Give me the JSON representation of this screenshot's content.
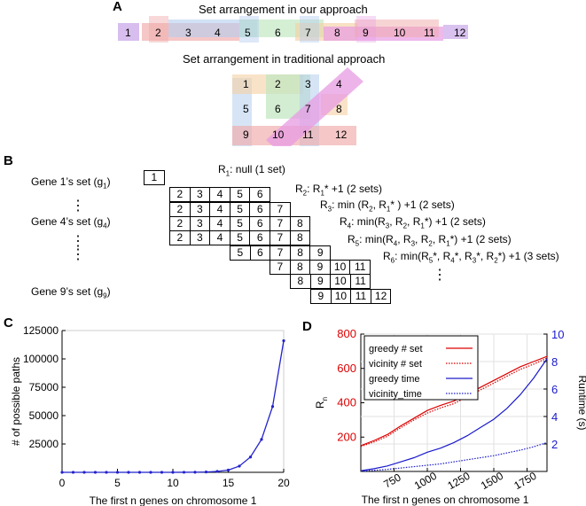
{
  "panel_a": {
    "label": "A",
    "title_ours": "Set arrangement in our approach",
    "title_traditional": "Set arrangement in traditional approach",
    "numbers": [
      "1",
      "2",
      "3",
      "4",
      "5",
      "6",
      "7",
      "8",
      "9",
      "10",
      "11",
      "12"
    ],
    "colors": {
      "purple": "#c9a8e8",
      "red": "#f0a9a9",
      "blue": "#b4cdef",
      "green": "#bfe6bf",
      "orange": "#f5d1a4",
      "magenta": "#e79be3"
    }
  },
  "panel_b": {
    "label": "B",
    "gene_labels": [
      {
        "text": "Gene 1’s set (g",
        "sub": "1",
        "tail": ")"
      },
      {
        "text": "Gene 4’s set (g",
        "sub": "4",
        "tail": ")"
      },
      {
        "text": "Gene 9’s set (g",
        "sub": "9",
        "tail": ")"
      }
    ],
    "vdots": [
      "⋮",
      "⋮"
    ],
    "rows": [
      [
        "1"
      ],
      [
        "2",
        "3",
        "4",
        "5",
        "6"
      ],
      [
        "2",
        "3",
        "4",
        "5",
        "6",
        "7"
      ],
      [
        "2",
        "3",
        "4",
        "5",
        "6",
        "7",
        "8"
      ],
      [
        "2",
        "3",
        "4",
        "5",
        "6",
        "7",
        "8"
      ],
      [
        "5",
        "6",
        "7",
        "8",
        "9"
      ],
      [
        "7",
        "8",
        "9",
        "10",
        "11"
      ],
      [
        "8",
        "9",
        "10",
        "11"
      ],
      [
        "9",
        "10",
        "11",
        "12"
      ]
    ],
    "r_labels": {
      "r1": {
        "a": "R",
        "sub": "1",
        "b": ": null (1 set)"
      },
      "r2": {
        "a": "R",
        "sub": "2",
        "b": ": R",
        "sub2": "1",
        "c": "* +1 (2 sets)"
      },
      "r3": {
        "a": "R",
        "sub": "3",
        "b": ": min (R",
        "sub2": "2",
        "c": ", R",
        "sub3": "1",
        "d": "* ) +1 (2 sets)"
      },
      "r4": {
        "a": "R",
        "sub": "4",
        "b": ": min(R",
        "sub2": "3",
        "c": ", R",
        "sub3": "2",
        "d": ", R",
        "sub4": "1",
        "e": "*) +1 (2 sets)"
      },
      "r5": {
        "a": "R",
        "sub": "5",
        "b": ": min(R",
        "sub2": "4",
        "c": ", R",
        "sub3": "3",
        "d": ", R",
        "sub4": "2",
        "e": ", R",
        "sub5": "1",
        "f": "*) +1 (2 sets)"
      },
      "r6": {
        "a": "R",
        "sub": "6",
        "b": ": min(R",
        "sub2": "5",
        "c": "*, R",
        "sub3": "4",
        "d": "*, R",
        "sub4": "3",
        "e": "*, R",
        "sub5": "2",
        "f": "*) +1 (3 sets)"
      }
    }
  },
  "chart_data": [
    {
      "panel": "C",
      "type": "line",
      "title": "",
      "xlabel": "The first n genes on chromosome 1",
      "ylabel": "# of possible paths",
      "x": [
        0,
        1,
        2,
        3,
        4,
        5,
        6,
        7,
        8,
        9,
        10,
        11,
        12,
        13,
        14,
        15,
        16,
        17,
        18,
        19,
        20
      ],
      "series": [
        {
          "name": "paths",
          "color": "#2222cc",
          "values": [
            1,
            1,
            1,
            1,
            1,
            1,
            2,
            3,
            5,
            10,
            20,
            50,
            100,
            300,
            800,
            2000,
            5500,
            13500,
            29000,
            58000,
            116000
          ]
        }
      ],
      "xlim": [
        0,
        20
      ],
      "ylim": [
        0,
        125000
      ],
      "xticks": [
        "0",
        "5",
        "10",
        "15",
        "20"
      ],
      "yticks": [
        "25000",
        "50000",
        "75000",
        "100000",
        "125000"
      ]
    },
    {
      "panel": "D",
      "type": "line",
      "xlabel": "The first n genes on chromosome 1",
      "ylabel_left": "R",
      "ylabel_left_sub": "n",
      "ylabel_right": "Runtime (s)",
      "xlim": [
        500,
        1900
      ],
      "ylim_left": [
        0,
        800
      ],
      "ylim_right": [
        0,
        10
      ],
      "xticks": [
        "750",
        "1000",
        "1250",
        "1500",
        "1750"
      ],
      "yticks_left": [
        "200",
        "400",
        "600",
        "800"
      ],
      "yticks_right": [
        "2",
        "4",
        "6",
        "8",
        "10"
      ],
      "left_color": "#dd0000",
      "right_color": "#1a1acc",
      "legend": [
        "greedy # set",
        "vicinity # set",
        "greedy time",
        "vicinity_time"
      ],
      "series": [
        {
          "name": "greedy # set",
          "axis": "left",
          "color": "#dd0000",
          "style": "solid",
          "x": [
            500,
            600,
            700,
            800,
            900,
            1000,
            1100,
            1200,
            1300,
            1400,
            1500,
            1600,
            1700,
            1800,
            1900
          ],
          "values": [
            150,
            180,
            215,
            265,
            310,
            355,
            385,
            410,
            450,
            490,
            530,
            570,
            610,
            640,
            670
          ]
        },
        {
          "name": "vicinity # set",
          "axis": "left",
          "color": "#dd0000",
          "style": "dotted",
          "x": [
            500,
            600,
            700,
            800,
            900,
            1000,
            1100,
            1200,
            1300,
            1400,
            1500,
            1600,
            1700,
            1800,
            1900
          ],
          "values": [
            145,
            172,
            205,
            255,
            300,
            340,
            370,
            395,
            435,
            475,
            515,
            555,
            595,
            625,
            660
          ]
        },
        {
          "name": "greedy time",
          "axis": "right",
          "color": "#1a1acc",
          "style": "solid",
          "x": [
            500,
            600,
            700,
            800,
            900,
            1000,
            1100,
            1200,
            1300,
            1400,
            1500,
            1600,
            1700,
            1800,
            1900
          ],
          "values": [
            0.05,
            0.2,
            0.4,
            0.7,
            1.0,
            1.4,
            1.7,
            2.1,
            2.6,
            3.2,
            3.8,
            4.6,
            5.6,
            6.8,
            8.2
          ]
        },
        {
          "name": "vicinity_time",
          "axis": "right",
          "color": "#1a1acc",
          "style": "dotted",
          "x": [
            500,
            600,
            700,
            800,
            900,
            1000,
            1100,
            1200,
            1300,
            1400,
            1500,
            1600,
            1700,
            1800,
            1900
          ],
          "values": [
            0.02,
            0.08,
            0.15,
            0.25,
            0.35,
            0.45,
            0.55,
            0.7,
            0.85,
            1.0,
            1.15,
            1.35,
            1.55,
            1.8,
            2.1
          ]
        }
      ]
    }
  ]
}
